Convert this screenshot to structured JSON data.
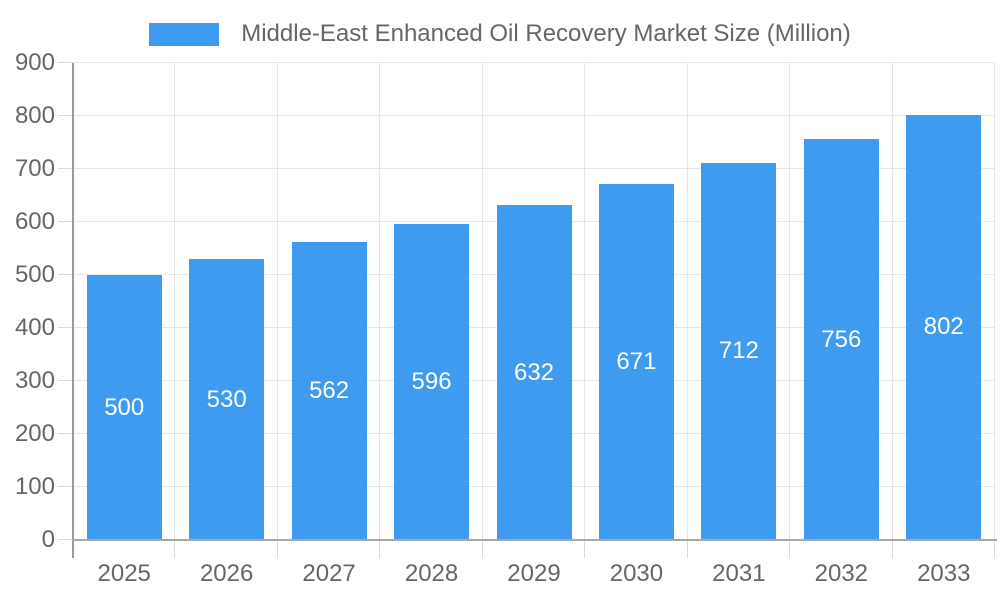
{
  "chart_data": {
    "type": "bar",
    "legend_label": "Middle-East Enhanced Oil Recovery Market Size (Million)",
    "legend_position": "top-center",
    "categories": [
      "2025",
      "2026",
      "2027",
      "2028",
      "2029",
      "2030",
      "2031",
      "2032",
      "2033"
    ],
    "values": [
      500,
      530,
      562,
      596,
      632,
      671,
      712,
      756,
      802
    ],
    "xlabel": "",
    "ylabel": "",
    "ylim": [
      0,
      900
    ],
    "yticks": [
      0,
      100,
      200,
      300,
      400,
      500,
      600,
      700,
      800,
      900
    ],
    "grid": true,
    "value_labels_inside_bars": true,
    "colors": {
      "bar": "#3E9BF0",
      "value_label": "#ffffff",
      "axis_text": "#666666",
      "gridline": "#e6e6e6",
      "tick": "#d9d9d9",
      "y_axis_line": "#999999",
      "x_axis_line": "#a8a8a8",
      "background": "#ffffff"
    }
  }
}
